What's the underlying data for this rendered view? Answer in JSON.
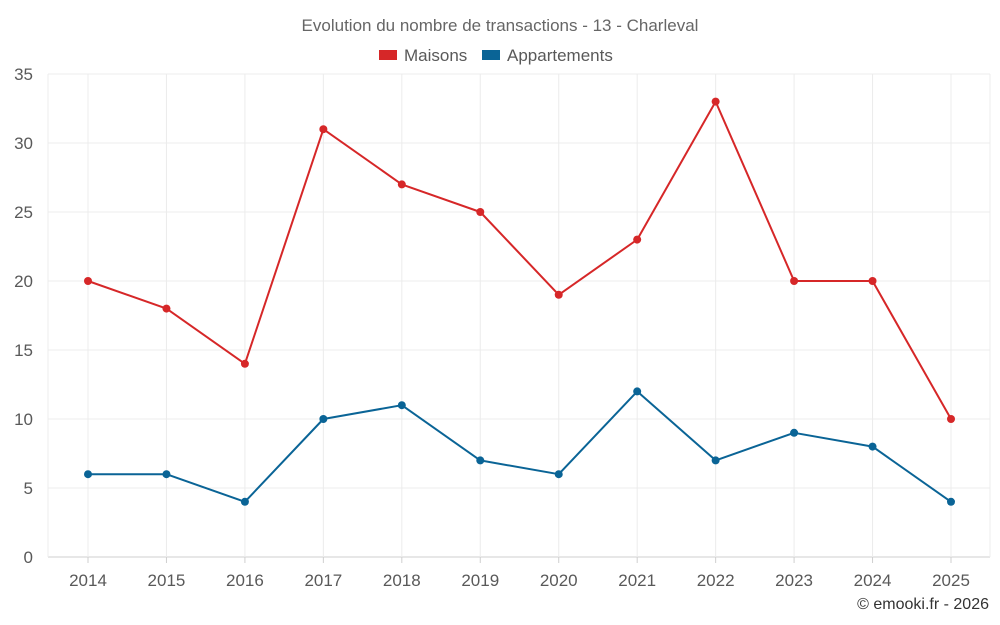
{
  "chart_data": {
    "type": "line",
    "title": "Evolution du nombre de transactions - 13 - Charleval",
    "categories": [
      "2014",
      "2015",
      "2016",
      "2017",
      "2018",
      "2019",
      "2020",
      "2021",
      "2022",
      "2023",
      "2024",
      "2025"
    ],
    "series": [
      {
        "name": "Maisons",
        "color": "#d62728",
        "values": [
          20,
          18,
          14,
          31,
          27,
          25,
          19,
          23,
          33,
          20,
          20,
          10
        ]
      },
      {
        "name": "Appartements",
        "color": "#0a6496",
        "values": [
          6,
          6,
          4,
          10,
          11,
          7,
          6,
          12,
          7,
          9,
          8,
          4
        ]
      }
    ],
    "ylim": [
      0,
      35
    ],
    "yticks": [
      0,
      5,
      10,
      15,
      20,
      25,
      30,
      35
    ],
    "grid": true,
    "legend_position": "top-center",
    "xlabel": "",
    "ylabel": ""
  },
  "credit": "© emooki.fr - 2026"
}
